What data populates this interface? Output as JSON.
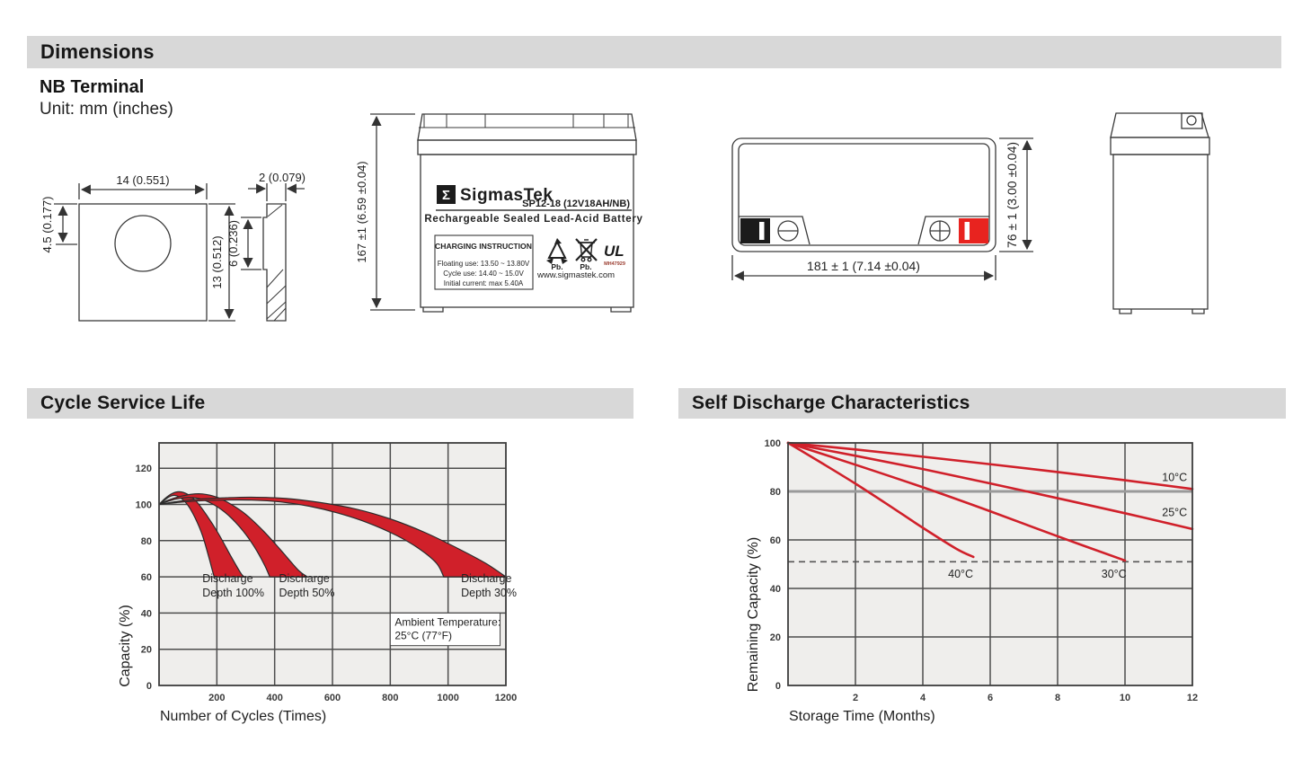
{
  "page": {
    "section_dimensions": "Dimensions",
    "terminal_type": "NB Terminal",
    "unit_note": "Unit: mm (inches)",
    "section_cycle": "Cycle Service Life",
    "section_self_discharge": "Self Discharge Characteristics"
  },
  "drawings": {
    "terminal_front": {
      "width_dim": "14 (0.551)",
      "hole_offset_dim": "4.5 (0.177)",
      "height_dim": "13 (0.512)"
    },
    "terminal_side": {
      "thickness_dim": "2 (0.079)",
      "mid_dim": "6 (0.236)"
    },
    "battery_front": {
      "height_dim": "167 ±1 (6.59 ±0.04)",
      "logo_sigma": "Σ",
      "brand": "SigmasTek",
      "model": "SP12-18 (12V18AH/NB)",
      "subtitle": "Rechargeable Sealed Lead-Acid Battery",
      "charging_title": "CHARGING INSTRUCTION",
      "charging_line1": "Floating use: 13.50 ~ 13.80V",
      "charging_line2": "Cycle use: 14.40 ~ 15.0V",
      "charging_line3": "Initial current: max 5.40A",
      "pb_recycle_label": "Pb.",
      "pb_bin_label": "Pb.",
      "ul_text": "UL",
      "ul_code": "MH47929",
      "website": "www.sigmastek.com"
    },
    "battery_top": {
      "width_dim": "181 ± 1 (7.14 ±0.04)",
      "depth_dim": "76 ± 1 (3.00 ±0.04)"
    }
  },
  "colors": {
    "accent_red": "#d0202a",
    "terminal_black": "#1b1b1b",
    "terminal_red": "#e8231f",
    "header_gray": "#d8d8d8"
  },
  "chart_data": [
    {
      "id": "cycle-service-life",
      "type": "area",
      "title": "Cycle Service Life",
      "xlabel": "Number of Cycles (Times)",
      "ylabel": "Capacity (%)",
      "xlim": [
        0,
        1200
      ],
      "ylim": [
        0,
        134
      ],
      "xticks": [
        200,
        400,
        600,
        800,
        1000,
        1200
      ],
      "yticks": [
        0,
        20,
        40,
        60,
        80,
        100,
        120
      ],
      "grid": true,
      "legend": "none",
      "band_color": "#d0202a",
      "bands": [
        {
          "name": "Discharge Depth 100%",
          "upper": [
            [
              0,
              100
            ],
            [
              20,
              103.2
            ],
            [
              45,
              106
            ],
            [
              70,
              107
            ],
            [
              100,
              105.5
            ],
            [
              130,
              101.5
            ],
            [
              165,
              94
            ],
            [
              205,
              84
            ],
            [
              250,
              71
            ],
            [
              283,
              62
            ],
            [
              295,
              60
            ]
          ],
          "lower": [
            [
              0,
              100
            ],
            [
              15,
              101.8
            ],
            [
              35,
              104.2
            ],
            [
              55,
              105
            ],
            [
              78,
              103.2
            ],
            [
              100,
              99.5
            ],
            [
              125,
              92.5
            ],
            [
              150,
              83
            ],
            [
              172,
              71
            ],
            [
              188,
              61.5
            ],
            [
              192,
              60
            ]
          ]
        },
        {
          "name": "Discharge Depth 50%",
          "upper": [
            [
              0,
              100
            ],
            [
              30,
              102.3
            ],
            [
              70,
              104.3
            ],
            [
              110,
              105.6
            ],
            [
              150,
              105.8
            ],
            [
              200,
              104
            ],
            [
              250,
              100
            ],
            [
              300,
              94.5
            ],
            [
              360,
              85.5
            ],
            [
              420,
              75
            ],
            [
              480,
              64
            ],
            [
              513,
              60
            ]
          ],
          "lower": [
            [
              0,
              100
            ],
            [
              25,
              101.4
            ],
            [
              60,
              103
            ],
            [
              100,
              103.8
            ],
            [
              140,
              103.2
            ],
            [
              190,
              99.8
            ],
            [
              240,
              94
            ],
            [
              290,
              85.5
            ],
            [
              330,
              76.5
            ],
            [
              365,
              66.5
            ],
            [
              383,
              60
            ]
          ]
        },
        {
          "name": "Discharge Depth 30%",
          "upper": [
            [
              0,
              100
            ],
            [
              60,
              101.6
            ],
            [
              130,
              102.8
            ],
            [
              220,
              103.6
            ],
            [
              320,
              104
            ],
            [
              440,
              103.3
            ],
            [
              560,
              101
            ],
            [
              680,
              97.5
            ],
            [
              800,
              92
            ],
            [
              920,
              84.5
            ],
            [
              1030,
              76
            ],
            [
              1130,
              67.5
            ],
            [
              1200,
              60
            ]
          ],
          "lower": [
            [
              0,
              100
            ],
            [
              60,
              101
            ],
            [
              130,
              101.9
            ],
            [
              220,
              102.4
            ],
            [
              320,
              102.4
            ],
            [
              420,
              101.4
            ],
            [
              520,
              99
            ],
            [
              620,
              95.2
            ],
            [
              720,
              90
            ],
            [
              820,
              83
            ],
            [
              900,
              75.5
            ],
            [
              960,
              67.5
            ],
            [
              985,
              60
            ]
          ]
        }
      ],
      "annotations": [
        {
          "text": "Discharge\nDepth 100%",
          "x": 150,
          "y": 57
        },
        {
          "text": "Discharge\nDepth 50%",
          "x": 415,
          "y": 57
        },
        {
          "text": "Discharge\nDepth 30%",
          "x": 1045,
          "y": 57
        }
      ],
      "note_box": {
        "text": "Ambient Temperature:\n25°C (77°F)",
        "x1": 800,
        "y1": 40,
        "x2": 1180,
        "y2": 22
      }
    },
    {
      "id": "self-discharge-characteristics",
      "type": "line",
      "title": "Self Discharge Characteristics",
      "xlabel": "Storage Time (Months)",
      "ylabel": "Remaining Capacity (%)",
      "xlim": [
        0,
        12
      ],
      "ylim": [
        0,
        100
      ],
      "xticks": [
        2,
        4,
        6,
        8,
        10,
        12
      ],
      "yticks": [
        0,
        20,
        40,
        60,
        80,
        100
      ],
      "grid": true,
      "legend": "inline-labels",
      "line_color": "#d0202a",
      "thick_gridline_y": 80,
      "dashed_line_y": 51,
      "series": [
        {
          "name": "10°C",
          "points": [
            [
              0,
              100
            ],
            [
              2,
              97.3
            ],
            [
              4,
              94.3
            ],
            [
              6,
              91.2
            ],
            [
              8,
              88
            ],
            [
              10,
              84.6
            ],
            [
              12,
              81
            ]
          ]
        },
        {
          "name": "25°C",
          "points": [
            [
              0,
              100
            ],
            [
              2,
              94.7
            ],
            [
              4,
              89.2
            ],
            [
              6,
              83.3
            ],
            [
              8,
              77.2
            ],
            [
              10,
              71
            ],
            [
              12,
              64.5
            ]
          ]
        },
        {
          "name": "30°C",
          "points": [
            [
              0,
              100
            ],
            [
              2,
              91
            ],
            [
              4,
              81.7
            ],
            [
              6,
              71.8
            ],
            [
              8,
              61.5
            ],
            [
              10,
              51.5
            ]
          ]
        },
        {
          "name": "40°C",
          "points": [
            [
              0,
              100
            ],
            [
              1,
              91.7
            ],
            [
              2,
              83.2
            ],
            [
              3,
              74.2
            ],
            [
              4,
              65
            ],
            [
              5,
              56.3
            ],
            [
              5.5,
              53
            ]
          ]
        }
      ],
      "annotations": [
        {
          "text": "10°C",
          "x": 11.1,
          "y": 84.3
        },
        {
          "text": "25°C",
          "x": 11.1,
          "y": 69.8
        },
        {
          "text": "40°C",
          "x": 4.75,
          "y": 44.5
        },
        {
          "text": "30°C",
          "x": 9.3,
          "y": 44.5
        }
      ]
    }
  ]
}
